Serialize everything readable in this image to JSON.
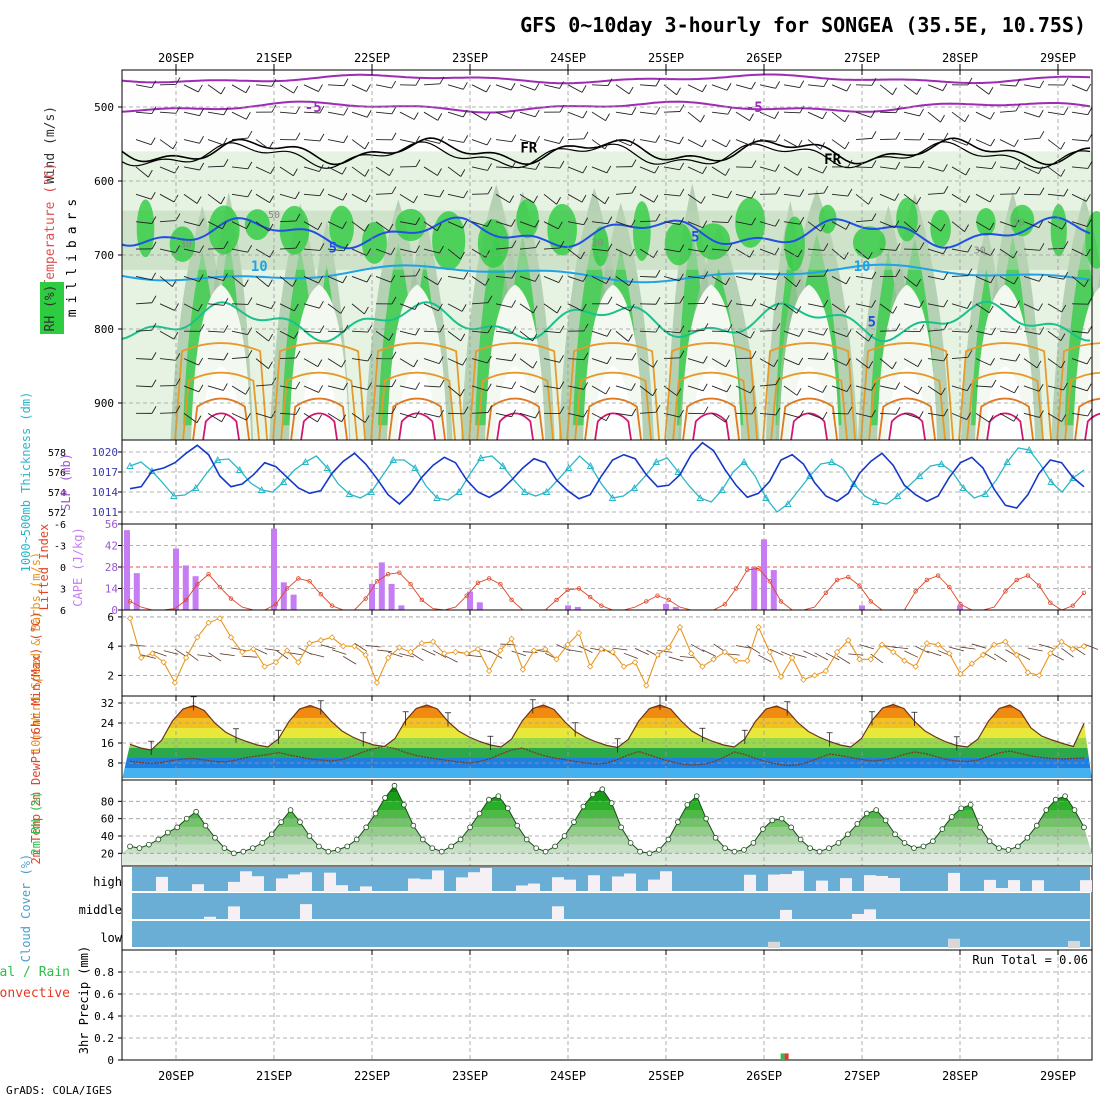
{
  "header": {
    "title": "GFS 0~10day 3-hourly for SONGEA (35.5E, 10.75S)",
    "credit": "GrADS: COLA/IGES"
  },
  "colors": {
    "rh_green": "#2ecc40",
    "temp_purple": "#9d2bb5",
    "temp_blue": "#1f52e0",
    "temp_cyan": "#1fa2e6",
    "temp_teal": "#19c28c",
    "temp_orange": "#e69a2a",
    "temp_magenta": "#d0186f",
    "slp_blue": "#1638c8",
    "thickness_cyan": "#2ab7c8",
    "cape_purple": "#c67cf2",
    "lifted_red": "#e0462a",
    "wind_orange": "#e8961e",
    "cloud_blue": "#6aaed6",
    "cloud_white": "#f4f0f4",
    "precip_green": "#2ebd4a",
    "precip_red": "#e03a26"
  },
  "chart_data": [
    {
      "panel": "upper_air",
      "type": "heatmap",
      "title": "GFS 0~10day 3-hourly for SONGEA (35.5E, 10.75S)",
      "xlabel": "",
      "ylabel": "millibars",
      "y_ticks": [
        500,
        600,
        700,
        800,
        900
      ],
      "dates": [
        "20SEP",
        "21SEP",
        "22SEP",
        "23SEP",
        "24SEP",
        "25SEP",
        "26SEP",
        "27SEP",
        "28SEP",
        "29SEP"
      ],
      "legend": [
        "Wind (m/s)",
        "Temperature (°C)",
        "RH (%)"
      ],
      "rh_labels": [
        "30",
        "50"
      ],
      "contour_labels": [
        {
          "text": "-5",
          "level": "-5C",
          "day": 1.4,
          "p": 500
        },
        {
          "text": "-5",
          "level": "-5C",
          "day": 5.9,
          "p": 500
        },
        {
          "text": "FR",
          "level": "0C",
          "day": 3.6,
          "p": 555
        },
        {
          "text": "FR",
          "level": "0C",
          "day": 6.7,
          "p": 570
        },
        {
          "text": "5",
          "level": "5C",
          "day": 1.6,
          "p": 690
        },
        {
          "text": "5",
          "level": "5C",
          "day": 5.3,
          "p": 675
        },
        {
          "text": "10",
          "level": "10C",
          "day": 0.85,
          "p": 715
        },
        {
          "text": "10",
          "level": "10C",
          "day": 7.0,
          "p": 715
        },
        {
          "text": "5",
          "level": "5C",
          "day": 7.1,
          "p": 790
        }
      ]
    },
    {
      "panel": "slp_thickness",
      "type": "line",
      "ylabel_left": "1000~500mb Thickness (dm)",
      "ylabel_right": "SLP (mb)",
      "left_ticks": [
        "578",
        "576",
        "574",
        "572"
      ],
      "right_ticks": [
        "1020",
        "1017",
        "1014",
        "1011"
      ],
      "series": [
        {
          "name": "SLP (mb)",
          "values": [
            1014.5,
            1014.8,
            1017.2,
            1017.6,
            1018.4,
            1019.8,
            1021.0,
            1019.6,
            1016.4,
            1014.8,
            1015.2,
            1016.6,
            1018.4,
            1017.8,
            1016.2,
            1014.6,
            1013.8,
            1014.2,
            1016.8,
            1018.6,
            1019.8,
            1018.2,
            1016.0,
            1013.6,
            1012.2,
            1013.8,
            1016.2,
            1018.0,
            1019.2,
            1018.4,
            1015.8,
            1014.0,
            1013.2,
            1014.2,
            1015.8,
            1017.6,
            1019.0,
            1018.4,
            1015.8,
            1014.2,
            1013.0,
            1013.6,
            1016.4,
            1018.8,
            1019.6,
            1019.0,
            1016.6,
            1014.8,
            1015.0,
            1016.6,
            1019.6,
            1021.4,
            1020.2,
            1017.4,
            1015.0,
            1013.2,
            1013.8,
            1015.6,
            1018.8,
            1019.6,
            1018.2,
            1015.4,
            1013.4,
            1012.6,
            1013.8,
            1016.8,
            1018.6,
            1019.8,
            1018.0,
            1015.0,
            1013.6,
            1012.6,
            1013.4,
            1016.2,
            1018.4,
            1019.2,
            1017.6,
            1014.4,
            1012.0,
            1011.6,
            1013.6,
            1016.8,
            1018.8,
            1018.4,
            1016.2,
            1014.8
          ]
        },
        {
          "name": "1000~500mb Thickness (dm)",
          "values": [
            576.6,
            577.0,
            576.1,
            574.9,
            573.6,
            573.7,
            574.4,
            575.9,
            577.2,
            577.3,
            576.2,
            574.9,
            574.2,
            574.0,
            575.0,
            576.2,
            577.0,
            577.6,
            576.4,
            574.8,
            573.8,
            573.4,
            574.0,
            575.6,
            577.2,
            577.2,
            576.4,
            574.6,
            573.4,
            573.2,
            574.0,
            575.8,
            577.4,
            577.6,
            576.6,
            575.2,
            574.0,
            573.6,
            574.0,
            575.2,
            576.4,
            577.6,
            576.6,
            574.8,
            573.4,
            573.6,
            574.4,
            575.6,
            577.0,
            577.4,
            576.0,
            574.6,
            573.4,
            573.0,
            574.2,
            576.0,
            577.0,
            575.6,
            573.4,
            572.0,
            572.8,
            574.2,
            575.6,
            576.8,
            577.0,
            576.4,
            574.8,
            573.6,
            573.0,
            572.8,
            573.6,
            574.6,
            575.6,
            576.6,
            576.8,
            576.0,
            574.4,
            573.4,
            573.8,
            575.2,
            577.0,
            578.4,
            578.2,
            576.8,
            575.0,
            574.0,
            575.4,
            576.2
          ]
        }
      ]
    },
    {
      "panel": "cape_li",
      "type": "bar",
      "ylabel_left": "Lifted Index",
      "ylabel_right": "CAPE (J/kg)",
      "left_ticks": [
        "-6",
        "-3",
        "0",
        "3",
        "6"
      ],
      "right_ticks": [
        "56",
        "42",
        "28",
        "14",
        "0"
      ],
      "cape_bars": [
        {
          "day": 0.0,
          "value": 52
        },
        {
          "day": 0.1,
          "value": 24
        },
        {
          "day": 0.5,
          "value": 40
        },
        {
          "day": 0.6,
          "value": 29
        },
        {
          "day": 0.7,
          "value": 22
        },
        {
          "day": 1.5,
          "value": 53
        },
        {
          "day": 1.6,
          "value": 18
        },
        {
          "day": 1.7,
          "value": 10
        },
        {
          "day": 2.5,
          "value": 17
        },
        {
          "day": 2.6,
          "value": 31
        },
        {
          "day": 2.7,
          "value": 17
        },
        {
          "day": 2.8,
          "value": 3
        },
        {
          "day": 3.5,
          "value": 12
        },
        {
          "day": 3.6,
          "value": 5
        },
        {
          "day": 4.5,
          "value": 3
        },
        {
          "day": 4.6,
          "value": 2
        },
        {
          "day": 5.5,
          "value": 4
        },
        {
          "day": 5.6,
          "value": 2
        },
        {
          "day": 6.4,
          "value": 28
        },
        {
          "day": 6.5,
          "value": 46
        },
        {
          "day": 6.6,
          "value": 26
        },
        {
          "day": 7.5,
          "value": 3
        },
        {
          "day": 8.5,
          "value": 3
        }
      ],
      "lifted_index": [
        4.8,
        5.6,
        6.2,
        6.4,
        5.8,
        4.6,
        2.4,
        1.0,
        2.8,
        4.4,
        5.6,
        6.4,
        6.4,
        5.2,
        3.0,
        1.6,
        2.0,
        3.8,
        5.4,
        6.4,
        6.2,
        4.4,
        2.0,
        1.0,
        0.8,
        2.4,
        4.6,
        5.8,
        6.2,
        5.6,
        4.0,
        2.2,
        1.6,
        2.4,
        4.6,
        6.0,
        6.4,
        6.0,
        4.6,
        3.2,
        3.0,
        4.2,
        5.4,
        6.4,
        6.4,
        5.6,
        4.8,
        4.0,
        4.6,
        5.6,
        6.2,
        6.4,
        6.4,
        5.2,
        3.0,
        0.4,
        0.2,
        2.0,
        4.8,
        6.0,
        6.4,
        5.6,
        3.6,
        1.8,
        1.4,
        2.6,
        4.8,
        6.0,
        6.4,
        6.0,
        3.4,
        1.8,
        1.2,
        2.8,
        5.2,
        6.2,
        6.4,
        5.6,
        3.4,
        1.8,
        1.2,
        2.6,
        5.0,
        6.2,
        5.4,
        3.6
      ]
    },
    {
      "panel": "wind10m",
      "type": "line",
      "ylabel": "10m Wind Speed & Barbs (m/s)",
      "y_ticks": [
        "6",
        "4",
        "2"
      ],
      "values": [
        5.9,
        3.2,
        3.5,
        2.9,
        1.5,
        3.2,
        4.6,
        5.6,
        5.9,
        4.6,
        3.6,
        3.8,
        2.6,
        2.9,
        3.7,
        2.9,
        4.2,
        4.4,
        4.6,
        4.0,
        4.0,
        3.4,
        1.5,
        3.2,
        3.9,
        3.6,
        4.2,
        4.3,
        3.5,
        3.6,
        3.5,
        3.8,
        2.3,
        3.7,
        4.5,
        2.4,
        3.7,
        3.8,
        3.1,
        4.1,
        4.9,
        2.6,
        3.8,
        3.6,
        2.6,
        2.9,
        1.3,
        3.4,
        3.9,
        5.3,
        3.5,
        2.6,
        3.1,
        3.6,
        3.0,
        3.0,
        5.3,
        3.6,
        1.9,
        3.2,
        1.7,
        2.0,
        2.3,
        3.6,
        4.4,
        3.1,
        3.1,
        4.1,
        3.6,
        3.0,
        2.6,
        4.2,
        4.1,
        3.5,
        2.1,
        2.8,
        3.4,
        4.1,
        4.3,
        3.4,
        2.2,
        2.0,
        3.5,
        4.3,
        3.8,
        4.0
      ]
    },
    {
      "panel": "temp2m",
      "type": "area",
      "ylabel": "2m Temp 2m DewPt (6hr Min/Max) (°C)",
      "y_ticks": [
        "32",
        "24",
        "16",
        "8"
      ],
      "temperature": [
        15.5,
        14.0,
        13.2,
        17.2,
        24.8,
        29.6,
        31.0,
        29.0,
        24.0,
        20.4,
        18.2,
        16.6,
        15.2,
        14.4,
        17.6,
        24.6,
        29.6,
        31.0,
        29.4,
        24.6,
        20.8,
        18.4,
        16.6,
        15.2,
        14.6,
        17.8,
        25.0,
        29.8,
        31.2,
        29.6,
        24.6,
        20.8,
        18.4,
        16.6,
        15.2,
        14.4,
        17.6,
        24.8,
        29.8,
        31.2,
        29.4,
        24.6,
        20.6,
        18.2,
        16.4,
        15.0,
        14.2,
        17.4,
        24.8,
        29.8,
        31.2,
        29.6,
        24.8,
        20.8,
        18.4,
        16.6,
        15.2,
        14.4,
        17.6,
        24.6,
        29.6,
        30.8,
        29.0,
        24.2,
        20.6,
        18.4,
        16.6,
        15.2,
        14.4,
        17.8,
        25.0,
        30.0,
        31.4,
        29.8,
        24.8,
        20.8,
        18.4,
        16.4,
        15.0,
        14.4,
        17.6,
        24.8,
        29.8,
        31.2,
        28.6,
        22.0,
        18.8,
        17.2,
        15.8,
        14.6,
        23.8
      ],
      "dewpoint": [
        8.6,
        8.2,
        7.8,
        8.2,
        9.0,
        9.6,
        9.8,
        9.2,
        8.6,
        8.4,
        9.2,
        10.2,
        10.8,
        11.4,
        12.2,
        11.2,
        10.4,
        9.6,
        9.2,
        8.8,
        9.4,
        10.8,
        12.4,
        13.8,
        14.6,
        13.8,
        12.2,
        11.0,
        10.2,
        9.6,
        9.0,
        8.4,
        8.0,
        8.6,
        9.8,
        11.6,
        13.2,
        14.0,
        12.4,
        11.0,
        10.0,
        9.4,
        8.6,
        8.0,
        7.6,
        8.0,
        9.4,
        11.2,
        12.6,
        11.2,
        9.8,
        8.6,
        7.6,
        7.2,
        7.4,
        8.4,
        10.2,
        12.4,
        11.4,
        9.8,
        8.6,
        7.6,
        7.0,
        7.2,
        8.4,
        10.0,
        11.6,
        11.0,
        10.2,
        9.4,
        8.8,
        9.2,
        10.0,
        11.4,
        12.4,
        11.8,
        10.6,
        9.4,
        8.8,
        8.6,
        9.2,
        10.6,
        12.0,
        12.8,
        11.8,
        10.8,
        10.2,
        9.8,
        9.6,
        9.8,
        10.0
      ]
    },
    {
      "panel": "rh2m",
      "type": "area",
      "ylabel": "2m RH (%)",
      "y_ticks": [
        "80",
        "60",
        "40",
        "20"
      ],
      "values": [
        28,
        26,
        30,
        36,
        44,
        50,
        60,
        68,
        52,
        38,
        26,
        20,
        22,
        26,
        32,
        42,
        56,
        70,
        56,
        40,
        28,
        22,
        24,
        28,
        36,
        50,
        66,
        84,
        98,
        76,
        52,
        36,
        26,
        22,
        28,
        36,
        50,
        66,
        82,
        86,
        72,
        52,
        36,
        26,
        22,
        28,
        40,
        56,
        74,
        88,
        94,
        78,
        50,
        32,
        22,
        20,
        24,
        36,
        56,
        76,
        86,
        60,
        38,
        26,
        22,
        24,
        32,
        48,
        58,
        60,
        50,
        36,
        26,
        22,
        26,
        32,
        42,
        54,
        66,
        70,
        58,
        42,
        32,
        26,
        28,
        34,
        48,
        62,
        72,
        76,
        50,
        34,
        26,
        24,
        28,
        38,
        52,
        70,
        82,
        86,
        70,
        50
      ]
    },
    {
      "panel": "cloud_cover",
      "type": "bar",
      "ylabel": "Cloud Cover (%)",
      "levels": [
        "high",
        "middle",
        "low"
      ]
    },
    {
      "panel": "precip",
      "type": "bar",
      "ylabel": "3hr Precip (mm)",
      "legend_left": [
        "Total / Rain",
        "Convective"
      ],
      "run_total": "Run Total = 0.06",
      "y_ticks": [
        "0.8",
        "0.6",
        "0.4",
        "0.2",
        "0"
      ],
      "ylim": [
        0,
        1.0
      ],
      "bars": [
        {
          "day": 6.2,
          "total": 0.06,
          "convective": 0.06
        }
      ]
    }
  ]
}
